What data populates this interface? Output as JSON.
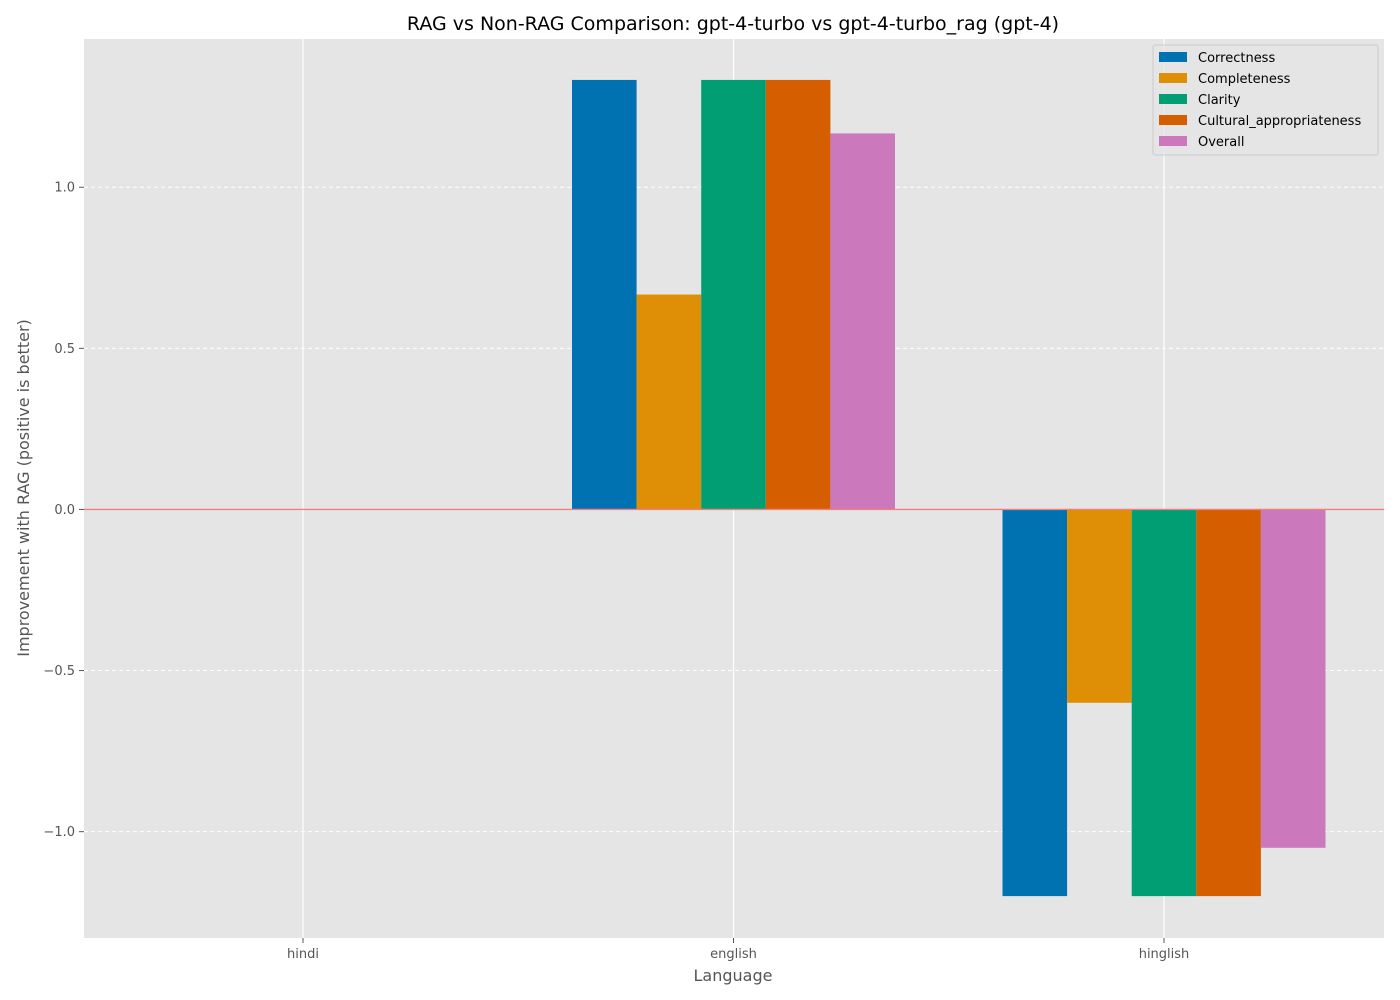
{
  "chart_data": {
    "type": "bar",
    "title": "RAG vs Non-RAG Comparison: gpt-4-turbo vs gpt-4-turbo_rag (gpt-4)",
    "xlabel": "Language",
    "ylabel": "Improvement with RAG (positive is better)",
    "categories": [
      "hindi",
      "english",
      "hinglish"
    ],
    "ylim": [
      -1.33,
      1.46
    ],
    "yticks": [
      -1.0,
      -0.5,
      0.0,
      0.5,
      1.0
    ],
    "ytick_labels": [
      "−1.0",
      "−0.5",
      "0.0",
      "0.5",
      "1.0"
    ],
    "grid": true,
    "legend_position": "top-right",
    "reference_line": {
      "y": 0,
      "color": "#f08080"
    },
    "background_color": "#e5e5e5",
    "series": [
      {
        "name": "Correctness",
        "color": "#0072b2",
        "values": [
          0,
          1.333,
          -1.2
        ]
      },
      {
        "name": "Completeness",
        "color": "#de8f05",
        "values": [
          0,
          0.667,
          -0.6
        ]
      },
      {
        "name": "Clarity",
        "color": "#029e73",
        "values": [
          0,
          1.333,
          -1.2
        ]
      },
      {
        "name": "Cultural_appropriateness",
        "color": "#d55e00",
        "values": [
          0,
          1.333,
          -1.2
        ]
      },
      {
        "name": "Overall",
        "color": "#cc78bc",
        "values": [
          0,
          1.167,
          -1.05
        ]
      }
    ]
  }
}
